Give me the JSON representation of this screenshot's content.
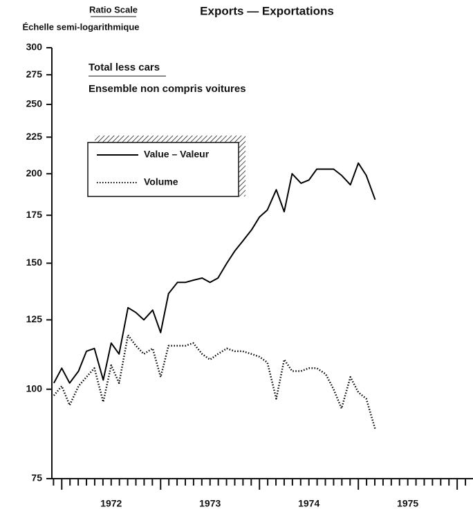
{
  "chart_data": {
    "type": "line",
    "title": "Exports — Exportations",
    "y_label": "Ratio Scale",
    "y_label_fr": "Échelle semi-logarithmique",
    "subtitle": "Total less cars",
    "subtitle_fr": "Ensemble non compris voitures",
    "x": [
      1971.92,
      1972,
      1972.08,
      1972.17,
      1972.25,
      1972.33,
      1972.42,
      1972.5,
      1972.58,
      1972.67,
      1972.75,
      1972.83,
      1972.92,
      1973,
      1973.08,
      1973.17,
      1973.25,
      1973.33,
      1973.42,
      1973.5,
      1973.58,
      1973.67,
      1973.75,
      1973.83,
      1973.92,
      1974,
      1974.08,
      1974.17,
      1974.25,
      1974.33,
      1974.42,
      1974.5,
      1974.58,
      1974.67,
      1974.75,
      1974.83,
      1974.92,
      1975,
      1975.08,
      1975.17
    ],
    "series": [
      {
        "name": "Value – Valeur",
        "color": "#000000",
        "style": "solid",
        "values": [
          102,
          107,
          102,
          106,
          113,
          114,
          103,
          116,
          112,
          130,
          128,
          125,
          129,
          120,
          136,
          141,
          141,
          142,
          143,
          141,
          143,
          150,
          156,
          161,
          167,
          174,
          178,
          190,
          177,
          200,
          194,
          196,
          203,
          203,
          203,
          199,
          193,
          207,
          199,
          184
        ]
      },
      {
        "name": "Volume",
        "color": "#000000",
        "style": "dotted",
        "values": [
          98,
          101,
          95,
          101,
          104,
          107,
          96,
          108,
          102,
          119,
          115,
          112,
          114,
          104,
          115,
          115,
          115,
          116,
          112,
          110,
          112,
          114,
          113,
          113,
          112,
          111,
          109,
          97,
          110,
          106,
          106,
          107,
          107,
          105,
          100,
          94,
          104,
          99,
          97,
          88
        ]
      }
    ],
    "xlim": [
      1971.9,
      1976.16
    ],
    "xticks": [
      {
        "value": 1972.5,
        "label": "1972"
      },
      {
        "value": 1973.5,
        "label": "1973"
      },
      {
        "value": 1974.5,
        "label": "1974"
      },
      {
        "value": 1975.5,
        "label": "1975"
      }
    ],
    "ylim": [
      75,
      300
    ],
    "yticks": [
      75,
      100,
      125,
      150,
      175,
      200,
      225,
      250,
      275,
      300
    ],
    "ylog": true,
    "grid": false
  }
}
